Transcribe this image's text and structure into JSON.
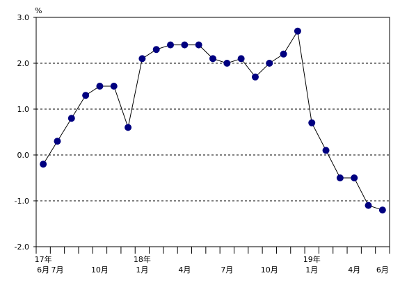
{
  "chart_data": {
    "type": "line",
    "unit": "%",
    "ylim": [
      -2.0,
      3.0
    ],
    "y_ticks": [
      "3.0",
      "2.0",
      "1.0",
      "0.0",
      "-1.0",
      "-2.0"
    ],
    "y_tick_values": [
      3.0,
      2.0,
      1.0,
      0.0,
      -1.0,
      -2.0
    ],
    "gridlines": "dashed at 2.0, 1.0, 0.0, -1.0",
    "x_period_count": 25,
    "x_labels": [
      {
        "index": 0,
        "top": "17年",
        "bottom": "6月"
      },
      {
        "index": 1,
        "top": "",
        "bottom": "7月"
      },
      {
        "index": 4,
        "top": "",
        "bottom": "10月"
      },
      {
        "index": 7,
        "top": "18年",
        "bottom": "1月"
      },
      {
        "index": 10,
        "top": "",
        "bottom": "4月"
      },
      {
        "index": 13,
        "top": "",
        "bottom": "7月"
      },
      {
        "index": 16,
        "top": "",
        "bottom": "10月"
      },
      {
        "index": 19,
        "top": "19年",
        "bottom": "1月"
      },
      {
        "index": 22,
        "top": "",
        "bottom": "4月"
      },
      {
        "index": 24,
        "top": "",
        "bottom": "6月"
      }
    ],
    "values": [
      -0.2,
      0.3,
      0.8,
      1.3,
      1.5,
      1.5,
      0.6,
      2.1,
      2.3,
      2.4,
      2.4,
      2.4,
      2.1,
      2.0,
      2.1,
      1.7,
      2.0,
      2.2,
      2.7,
      0.7,
      0.1,
      -0.5,
      -0.5,
      -1.1,
      -1.2
    ],
    "line_color": "#000000",
    "marker_color": "#000080"
  }
}
